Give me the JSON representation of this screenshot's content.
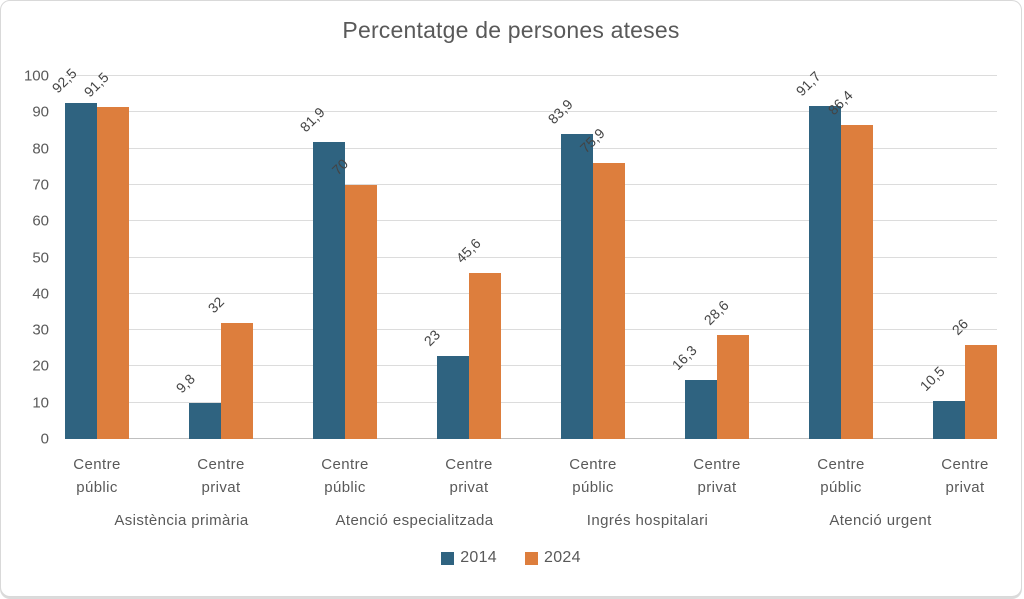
{
  "chart_data": {
    "type": "bar",
    "title": "Percentatge de persones ateses",
    "xlabel": "",
    "ylabel": "",
    "ylim": [
      0,
      100
    ],
    "yticks": [
      0,
      10,
      20,
      30,
      40,
      50,
      60,
      70,
      80,
      90,
      100
    ],
    "grid": true,
    "legend_position": "bottom",
    "decimal_separator": ",",
    "series": [
      {
        "name": "2014",
        "color": "#2f6380"
      },
      {
        "name": "2024",
        "color": "#dd7e3d"
      }
    ],
    "groups": [
      {
        "label": "Asistència primària",
        "categories": [
          "Centre públic",
          "Centre privat"
        ],
        "values": {
          "2014": [
            92.5,
            9.8
          ],
          "2024": [
            91.5,
            32
          ]
        },
        "display_labels": {
          "2014": [
            "92,5",
            "9,8"
          ],
          "2024": [
            "91,5",
            "32"
          ]
        }
      },
      {
        "label": "Atenció especialitzada",
        "categories": [
          "Centre públic",
          "Centre privat"
        ],
        "values": {
          "2014": [
            81.9,
            23
          ],
          "2024": [
            70,
            45.6
          ]
        },
        "display_labels": {
          "2014": [
            "81,9",
            "23"
          ],
          "2024": [
            "70",
            "45,6"
          ]
        }
      },
      {
        "label": "Ingrés hospitalari",
        "categories": [
          "Centre públic",
          "Centre privat"
        ],
        "values": {
          "2014": [
            83.9,
            16.3
          ],
          "2024": [
            75.9,
            28.6
          ]
        },
        "display_labels": {
          "2014": [
            "83,9",
            "16,3"
          ],
          "2024": [
            "75,9",
            "28,6"
          ]
        }
      },
      {
        "label": "Atenció urgent",
        "categories": [
          "Centre públic",
          "Centre privat"
        ],
        "values": {
          "2014": [
            91.7,
            10.5
          ],
          "2024": [
            86.4,
            26
          ]
        },
        "display_labels": {
          "2014": [
            "91,7",
            "10,5"
          ],
          "2024": [
            "86,4",
            "26"
          ]
        }
      }
    ]
  },
  "colors": {
    "series_2014": "#2f6380",
    "series_2024": "#dd7e3d",
    "text": "#595959",
    "data_label": "#444444",
    "gridline": "#dcdcdc",
    "axis_line": "#bfbfbf",
    "card_border": "#d9d9d9",
    "background": "#ffffff"
  }
}
